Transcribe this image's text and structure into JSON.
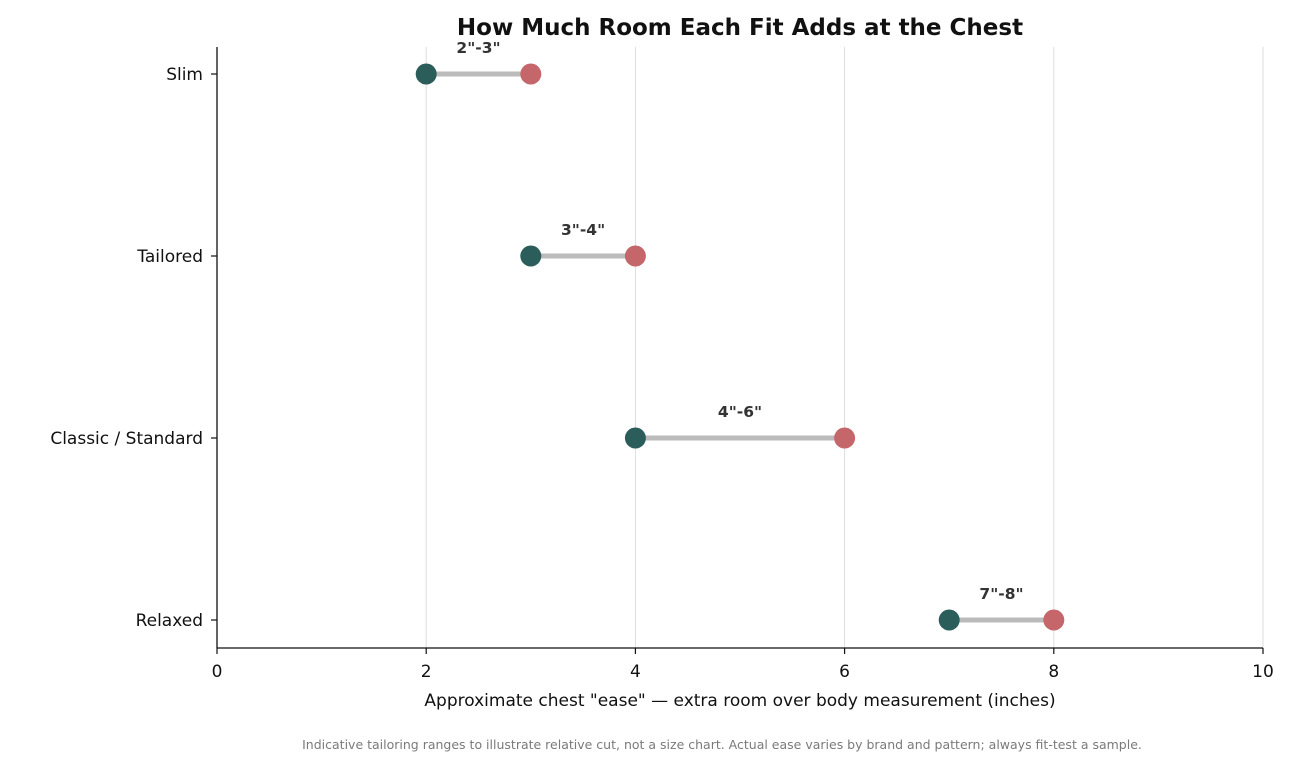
{
  "chart_data": {
    "type": "dumbbell",
    "title": "How Much Room Each Fit Adds at the Chest",
    "xlabel": "Approximate chest \"ease\" — extra room over body measurement (inches)",
    "ylabel": "",
    "xlim": [
      0,
      10
    ],
    "x_ticks": [
      0,
      2,
      4,
      6,
      8,
      10
    ],
    "grid": "vertical",
    "categories": [
      "Slim",
      "Tailored",
      "Classic / Standard",
      "Relaxed"
    ],
    "series": [
      {
        "name": "",
        "values": [
          2,
          3,
          4,
          7
        ]
      },
      {
        "name": "",
        "values": [
          3,
          4,
          6,
          8
        ]
      }
    ],
    "range_labels": [
      "2\"-3\"",
      "3\"-4\"",
      "4\"-6\"",
      "7\"-8\""
    ],
    "colors": {
      "low": "#2b5e5a",
      "high": "#c4666a",
      "connector": "#bbbbbb",
      "grid": "#dddddd",
      "axis": "#111111"
    }
  },
  "footnote": "Indicative tailoring ranges to illustrate relative cut, not a size chart. Actual ease varies by brand and pattern; always fit-test a sample."
}
